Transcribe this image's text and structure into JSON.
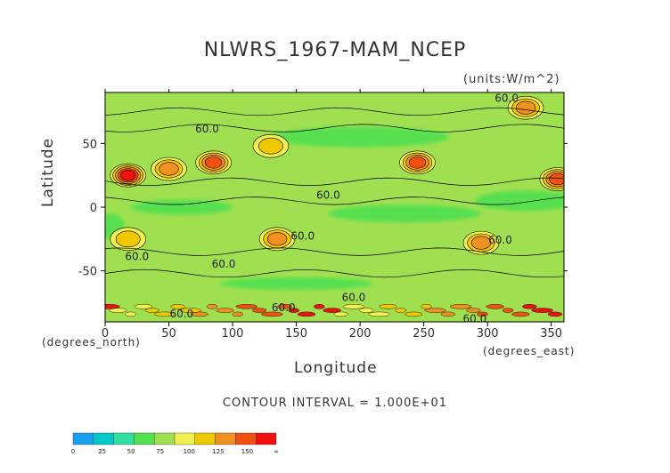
{
  "title": "NLWRS_1967-MAM_NCEP",
  "units": "(units:W/m^2)",
  "contour_interval": "CONTOUR INTERVAL = 1.000E+01",
  "chart_data": {
    "type": "heatmap",
    "title": "NLWRS_1967-MAM_NCEP",
    "xlabel": "Longitude",
    "ylabel": "Latitude",
    "x_unit_label": "(degrees_east)",
    "y_unit_label": "(degrees_north)",
    "xlim": [
      0,
      360
    ],
    "ylim": [
      -90,
      90
    ],
    "x_ticks": [
      0,
      50,
      100,
      150,
      200,
      250,
      300,
      350
    ],
    "y_ticks": [
      50,
      0,
      -50
    ],
    "contour_labels": [
      {
        "text": "60.0",
        "lon": 315,
        "lat": 86
      },
      {
        "text": "60.0",
        "lon": 80,
        "lat": 62
      },
      {
        "text": "60.0",
        "lon": 175,
        "lat": 10
      },
      {
        "text": "60.0",
        "lon": 155,
        "lat": -22
      },
      {
        "text": "60.0",
        "lon": 25,
        "lat": -38
      },
      {
        "text": "60.0",
        "lon": 93,
        "lat": -44
      },
      {
        "text": "60.0",
        "lon": 195,
        "lat": -70
      },
      {
        "text": "60.0",
        "lon": 140,
        "lat": -78
      },
      {
        "text": "60.0",
        "lon": 60,
        "lat": -83
      },
      {
        "text": "60.0",
        "lon": 290,
        "lat": -87
      },
      {
        "text": "60.0",
        "lon": 310,
        "lat": -25
      }
    ],
    "colorbar": {
      "tick_labels": [
        "0",
        "25",
        "50",
        "75",
        "100",
        "125",
        "150",
        "∞"
      ],
      "colors": [
        "#1aa0f0",
        "#00c8c8",
        "#30e0a0",
        "#50e050",
        "#a0e050",
        "#f0f050",
        "#f0c800",
        "#f09020",
        "#f05010",
        "#f01010"
      ]
    },
    "features": [
      {
        "lon": 18,
        "lat": 25,
        "value": 160
      },
      {
        "lon": 85,
        "lat": 35,
        "value": 150
      },
      {
        "lon": 245,
        "lat": 35,
        "value": 140
      },
      {
        "lon": 355,
        "lat": 22,
        "value": 150
      },
      {
        "lon": 135,
        "lat": -25,
        "value": 130
      },
      {
        "lon": 18,
        "lat": -25,
        "value": 110
      },
      {
        "lon": 295,
        "lat": -28,
        "value": 120
      },
      {
        "lon": 330,
        "lat": 78,
        "value": 130
      },
      {
        "lon": 130,
        "lat": 48,
        "value": 110
      },
      {
        "lon": 50,
        "lat": 30,
        "value": 120
      }
    ],
    "background_value": 70
  }
}
